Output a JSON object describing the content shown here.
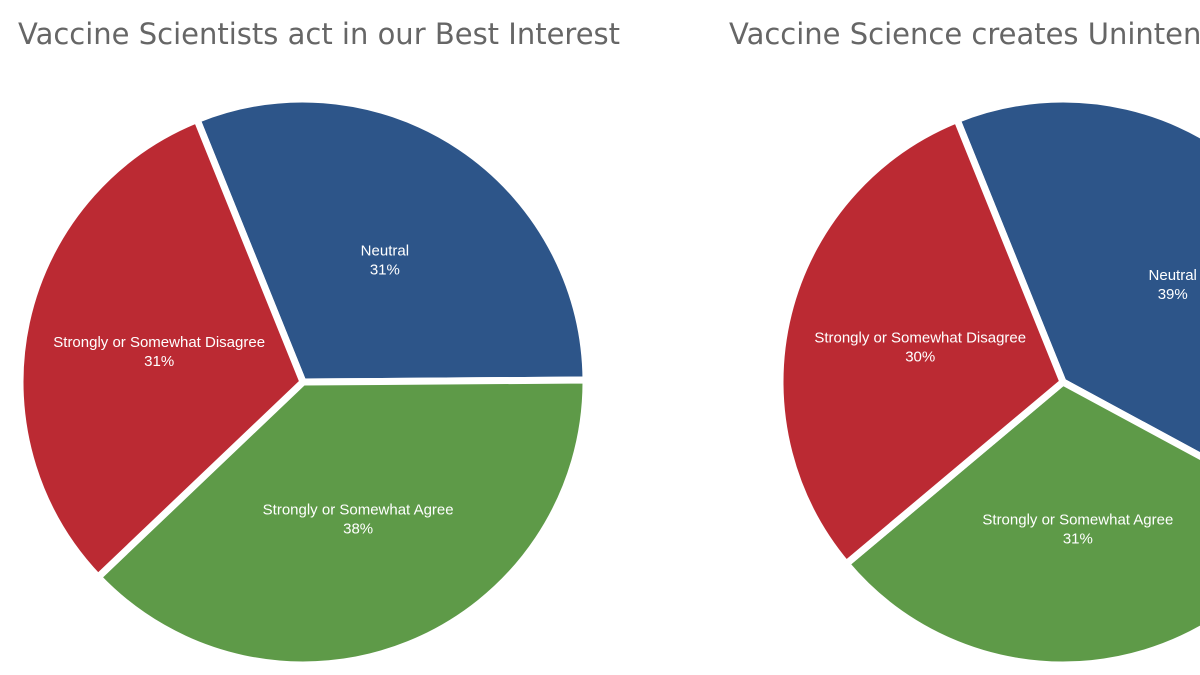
{
  "chart_data": [
    {
      "type": "pie",
      "title": "Vaccine Scientists act in our Best Interest",
      "categories": [
        "Neutral",
        "Strongly or Somewhat Agree",
        "Strongly or Somewhat Disagree"
      ],
      "values": [
        31,
        38,
        31
      ],
      "value_labels": [
        "31%",
        "38%",
        "31%"
      ],
      "colors": [
        "#2d5589",
        "#5e9a48",
        "#bb2a33"
      ]
    },
    {
      "type": "pie",
      "title": "Vaccine Science creates Unintende",
      "categories": [
        "Neutral",
        "Strongly or Somewhat Agree",
        "Strongly or Somewhat Disagree"
      ],
      "values": [
        39,
        31,
        30
      ],
      "value_labels": [
        "39%",
        "31%",
        "30%"
      ],
      "colors": [
        "#2d5589",
        "#5e9a48",
        "#bb2a33"
      ]
    }
  ]
}
